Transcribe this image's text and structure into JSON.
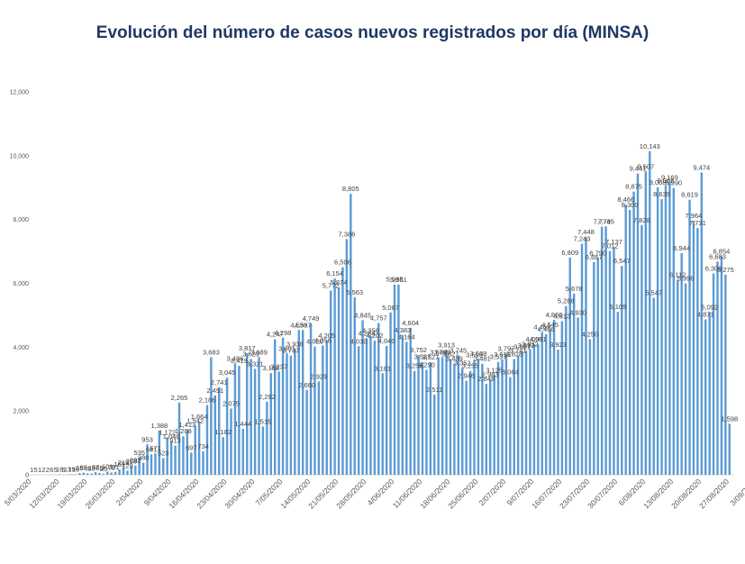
{
  "chart_data": {
    "type": "bar",
    "title": "Evolución del número de casos nuevos registrados por día (MINSA)",
    "xlabel": "",
    "ylabel": "",
    "ylim": [
      0,
      12000
    ],
    "yticks": [
      "0",
      "2,000",
      "4,000",
      "6,000",
      "8,000",
      "10,000",
      "12,000"
    ],
    "grid": false,
    "legend": "none",
    "bar_color": "#5b9bd5",
    "x_tick_labels": [
      "5/03/2020",
      "12/03/2020",
      "19/03/2020",
      "26/03/2020",
      "2/04/2020",
      "9/04/2020",
      "16/04/2020",
      "23/04/2020",
      "30/04/2020",
      "7/05/2020",
      "14/05/2020",
      "21/05/2020",
      "28/05/2020",
      "4/06/2020",
      "11/06/2020",
      "18/06/2020",
      "25/06/2020",
      "2/07/2020",
      "9/07/2020",
      "16/07/2020",
      "23/07/2020",
      "30/07/2020",
      "6/08/2020",
      "13/08/2020",
      "20/08/2020",
      "27/08/2020",
      "3/09/2020"
    ],
    "x_tick_every": 7,
    "start_label": "5/03/2020",
    "values": [
      1,
      5,
      1,
      2,
      2,
      6,
      5,
      16,
      5,
      13,
      19,
      16,
      55,
      65,
      45,
      43,
      87,
      60,
      35,
      101,
      70,
      91,
      169,
      219,
      129,
      268,
      292,
      535,
      380,
      953,
      641,
      671,
      1388,
      523,
      1172,
      1048,
      913,
      2265,
      1208,
      1413,
      697,
      1542,
      1664,
      734,
      2186,
      3683,
      2491,
      2741,
      1182,
      3045,
      2075,
      3486,
      3419,
      1444,
      3817,
      3629,
      3321,
      3689,
      1515,
      2292,
      3188,
      4247,
      3237,
      4298,
      3801,
      3737,
      3938,
      4536,
      4537,
      2660,
      4749,
      4020,
      2929,
      4056,
      4205,
      5772,
      6154,
      5874,
      6506,
      7386,
      8805,
      5563,
      4030,
      4845,
      4284,
      4358,
      4202,
      4757,
      3181,
      4040,
      5087,
      5965,
      5961,
      4383,
      4164,
      4604,
      3256,
      3752,
      3537,
      3290,
      3527,
      2511,
      3679,
      3689,
      3913,
      3627,
      3489,
      3745,
      3352,
      2946,
      3255,
      3595,
      3638,
      3481,
      2848,
      2983,
      3125,
      3537,
      3613,
      3797,
      3064,
      3628,
      3741,
      3861,
      3892,
      3932,
      4090,
      4091,
      4469,
      4406,
      4545,
      4860,
      3923,
      4813,
      5288,
      6809,
      5678,
      4930,
      7243,
      7448,
      4250,
      6667,
      6790,
      7774,
      7785,
      7012,
      7137,
      5109,
      6547,
      8466,
      8300,
      8875,
      9441,
      7828,
      9507,
      10143,
      5547,
      9008,
      8639,
      9068,
      9169,
      8990,
      6112,
      6944,
      5996,
      8619,
      7964,
      7731,
      9474,
      4871,
      5092,
      6309,
      6683,
      6854,
      6275,
      1598
    ],
    "labels_shown": true
  }
}
